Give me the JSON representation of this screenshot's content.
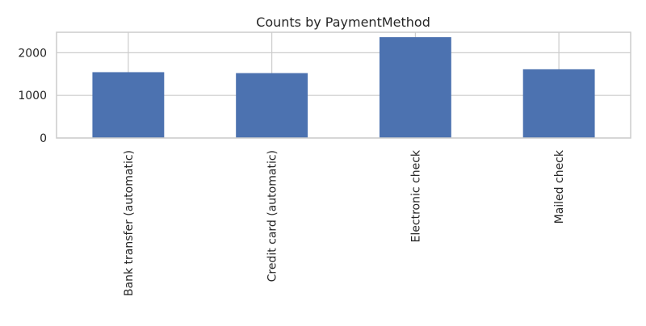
{
  "chart_data": {
    "type": "bar",
    "title": "Counts by PaymentMethod",
    "xlabel": "",
    "ylabel": "",
    "categories": [
      "Bank transfer (automatic)",
      "Credit card (automatic)",
      "Electronic check",
      "Mailed check"
    ],
    "values": [
      1544,
      1522,
      2365,
      1612
    ],
    "ylim": [
      0,
      2480
    ],
    "yticks": [
      0,
      1000,
      2000
    ],
    "grid": true,
    "legend": "none",
    "bar_color": "#4c72b0",
    "grid_color": "#cccccc",
    "spine_color": "#cccccc"
  }
}
